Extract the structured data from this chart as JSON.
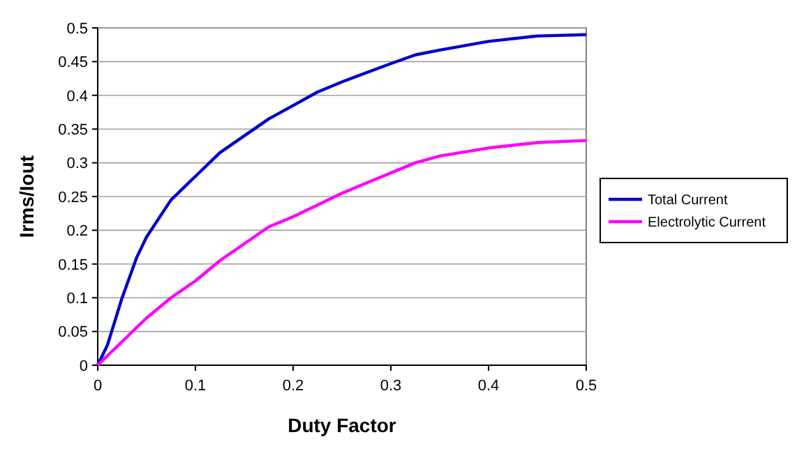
{
  "chart_data": {
    "type": "line",
    "xlabel": "Duty Factor",
    "ylabel": "Irms/Iout",
    "xlim": [
      0,
      0.5
    ],
    "xticks": [
      0,
      0.1,
      0.2,
      0.3,
      0.4,
      0.5
    ],
    "ylim": [
      0,
      0.5
    ],
    "yticks": [
      0,
      0.05,
      0.1,
      0.15,
      0.2,
      0.25,
      0.3,
      0.35,
      0.4,
      0.45,
      0.5
    ],
    "grid": "y",
    "legend": "right",
    "marker": "none",
    "line_style": "solid",
    "series": [
      {
        "name": "Total Current",
        "color": "#0000cc",
        "x": [
          0,
          0.01,
          0.025,
          0.04,
          0.05,
          0.075,
          0.1,
          0.125,
          0.15,
          0.175,
          0.2,
          0.225,
          0.25,
          0.3,
          0.325,
          0.35,
          0.4,
          0.45,
          0.5
        ],
        "values": [
          0,
          0.03,
          0.1,
          0.16,
          0.19,
          0.245,
          0.28,
          0.315,
          0.34,
          0.365,
          0.385,
          0.405,
          0.42,
          0.447,
          0.46,
          0.467,
          0.48,
          0.488,
          0.49
        ]
      },
      {
        "name": "Electrolytic Current",
        "color": "#ff00ff",
        "x": [
          0,
          0.025,
          0.05,
          0.075,
          0.1,
          0.125,
          0.15,
          0.175,
          0.2,
          0.25,
          0.3,
          0.325,
          0.35,
          0.4,
          0.45,
          0.5
        ],
        "values": [
          0,
          0.035,
          0.07,
          0.1,
          0.125,
          0.155,
          0.18,
          0.205,
          0.22,
          0.255,
          0.285,
          0.3,
          0.31,
          0.322,
          0.33,
          0.333
        ]
      }
    ]
  }
}
